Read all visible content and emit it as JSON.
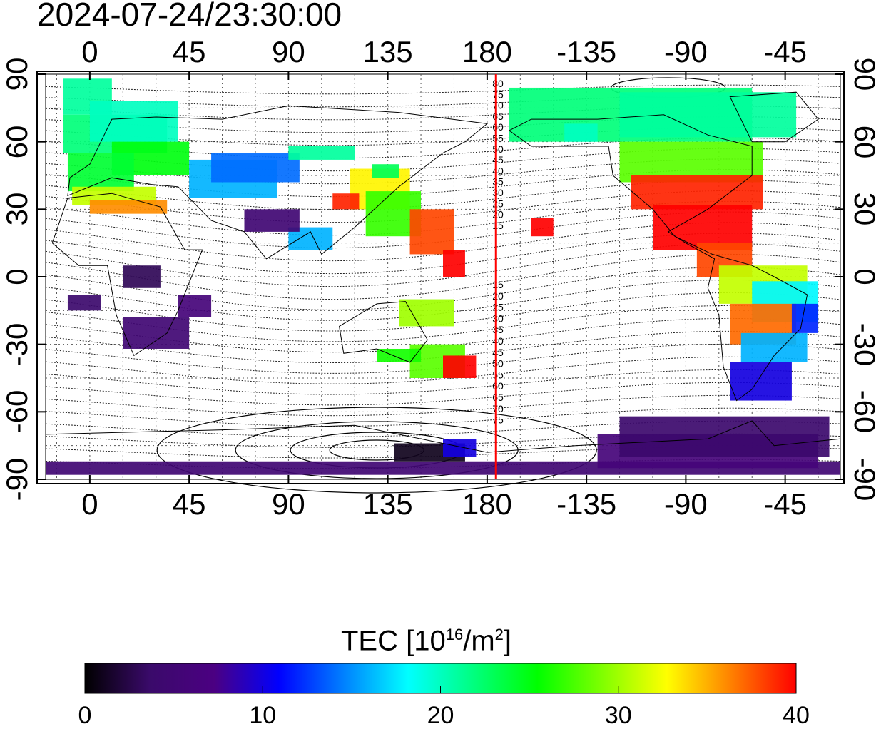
{
  "timestamp": "2024-07-24/23:30:00",
  "map": {
    "lon_ticks": [
      {
        "lon": 0,
        "label": "0"
      },
      {
        "lon": 45,
        "label": "45"
      },
      {
        "lon": 90,
        "label": "90"
      },
      {
        "lon": 135,
        "label": "135"
      },
      {
        "lon": 180,
        "label": "180"
      },
      {
        "lon": 225,
        "label": "-135"
      },
      {
        "lon": 270,
        "label": "-90"
      },
      {
        "lon": 315,
        "label": "-45"
      }
    ],
    "lat_ticks": [
      {
        "lat": 90,
        "label": "90"
      },
      {
        "lat": 60,
        "label": "60"
      },
      {
        "lat": 30,
        "label": "30"
      },
      {
        "lat": 0,
        "label": "0"
      },
      {
        "lat": -30,
        "label": "-30"
      },
      {
        "lat": -60,
        "label": "-60"
      },
      {
        "lat": -90,
        "label": "-90"
      }
    ],
    "lon_range": [
      -20,
      340
    ],
    "lat_range": [
      -90,
      90
    ],
    "terminator_lon": 184,
    "terminator_color": "#ff0000",
    "contour_labels_north": [
      "80",
      "75",
      "70",
      "65",
      "60",
      "55",
      "50",
      "45",
      "40",
      "35",
      "30",
      "25",
      "20",
      "15"
    ],
    "contour_labels_south": [
      "15",
      "20",
      "25",
      "30",
      "35",
      "40",
      "45",
      "50",
      "55",
      "60",
      "65",
      "70",
      "75"
    ]
  },
  "colorbar": {
    "title_main": "TEC  [10",
    "title_sup1": "16",
    "title_mid": "/m",
    "title_sup2": "2",
    "title_end": "]",
    "min": 0,
    "max": 40,
    "labels": [
      "0",
      "10",
      "20",
      "30",
      "40"
    ],
    "stops": [
      "#000000",
      "#3a0a6a",
      "#4b0082",
      "#0000ff",
      "#0080ff",
      "#00ffff",
      "#00ff80",
      "#00ff00",
      "#80ff00",
      "#ffff00",
      "#ff8000",
      "#ff0000"
    ]
  }
}
